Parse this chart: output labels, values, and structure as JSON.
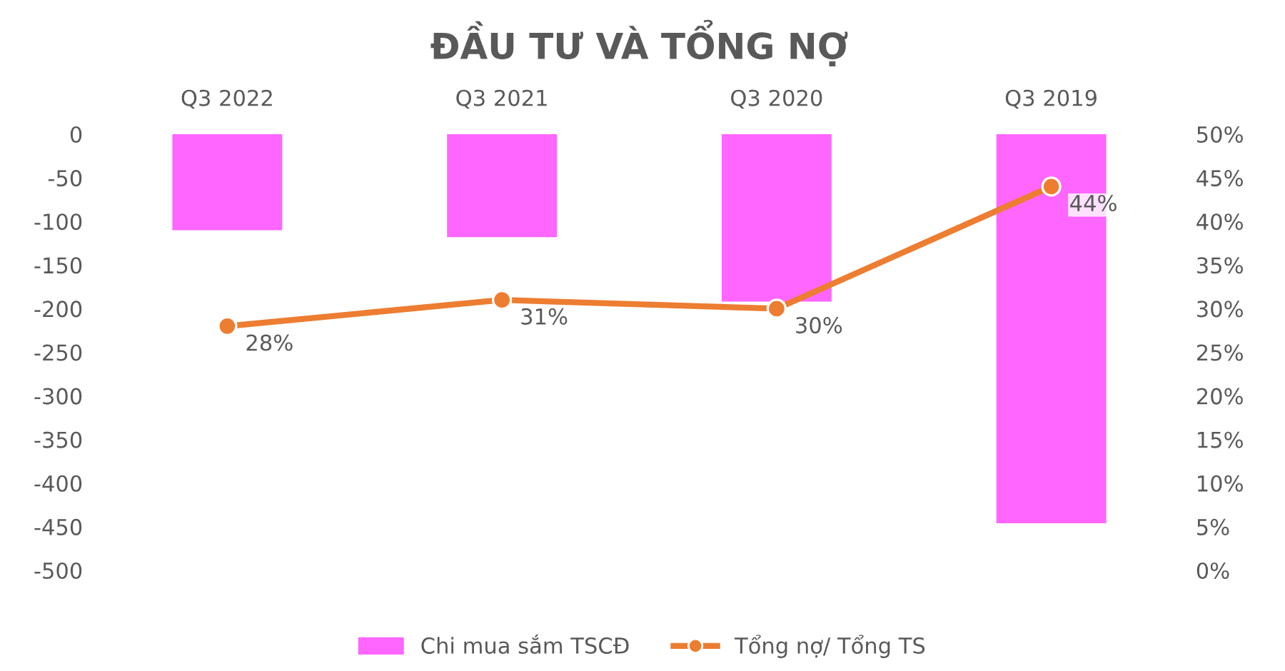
{
  "chart_data": {
    "type": "bar",
    "title": "ĐẦU TƯ VÀ TỔNG NỢ",
    "categories": [
      "Q3 2022",
      "Q3 2021",
      "Q3 2020",
      "Q3 2019"
    ],
    "series": [
      {
        "name": "Chi mua sắm TSCĐ",
        "color": "#ff66ff",
        "values": [
          -110,
          -118,
          -192,
          -446
        ]
      },
      {
        "name": "Tổng nợ/ Tổng TS",
        "type": "line",
        "axis": "y2",
        "color": "#ed7d31",
        "marker": "circle",
        "values": [
          28,
          31,
          30,
          44
        ],
        "value_labels": [
          "28%",
          "31%",
          "30%",
          "44%"
        ]
      }
    ],
    "ylim": [
      -500,
      0
    ],
    "yticks": [
      0,
      -50,
      -100,
      -150,
      -200,
      -250,
      -300,
      -350,
      -400,
      -450,
      -500
    ],
    "y2lim": [
      0,
      50
    ],
    "y2ticks": [
      {
        "value": 0,
        "label": "0%"
      },
      {
        "value": 5,
        "label": "5%"
      },
      {
        "value": 10,
        "label": "10%"
      },
      {
        "value": 15,
        "label": "15%"
      },
      {
        "value": 20,
        "label": "20%"
      },
      {
        "value": 25,
        "label": "25%"
      },
      {
        "value": 30,
        "label": "30%"
      },
      {
        "value": 35,
        "label": "35%"
      },
      {
        "value": 40,
        "label": "40%"
      },
      {
        "value": 45,
        "label": "45%"
      },
      {
        "value": 50,
        "label": "50%"
      }
    ],
    "grid": false,
    "legend": "bottom"
  }
}
